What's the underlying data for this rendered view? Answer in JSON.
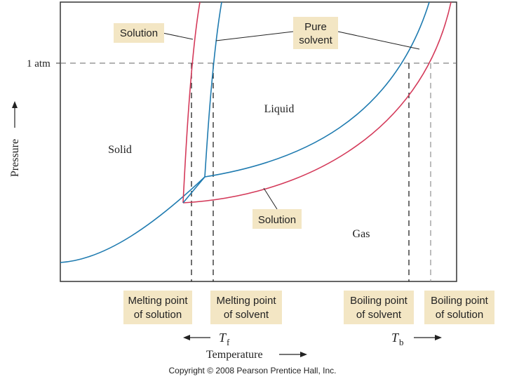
{
  "labels": {
    "solution_top": "Solution",
    "pure_solvent_line1": "Pure",
    "pure_solvent_line2": "solvent",
    "one_atm": "1 atm",
    "liquid": "Liquid",
    "solid": "Solid",
    "gas": "Gas",
    "solution_bottom": "Solution",
    "pressure_axis": "Pressure",
    "temperature_axis": "Temperature",
    "tf_main": "T",
    "tf_sub": "f",
    "tb_main": "T",
    "tb_sub": "b",
    "copyright": "Copyright © 2008 Pearson Prentice Hall, Inc."
  },
  "points": {
    "mp_solution_1": "Melting point",
    "mp_solution_2": "of solution",
    "mp_solvent_1": "Melting point",
    "mp_solvent_2": "of solvent",
    "bp_solvent_1": "Boiling point",
    "bp_solvent_2": "of solvent",
    "bp_solution_1": "Boiling point",
    "bp_solution_2": "of solution"
  },
  "colors": {
    "solvent_curve": "#1f7bb0",
    "solution_curve": "#d43a5a",
    "label_box": "#f3e6c4",
    "frame": "#333333"
  }
}
